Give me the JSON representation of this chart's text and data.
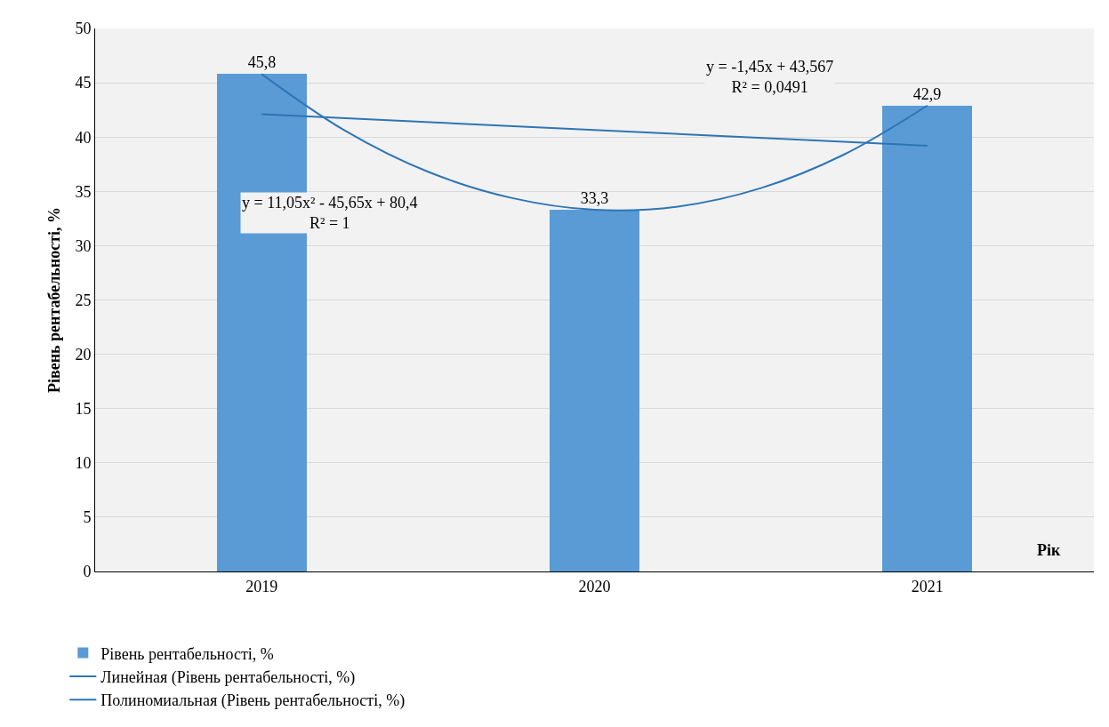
{
  "chart_data": {
    "type": "bar",
    "ylabel": "Рівень рентабельності, %",
    "xlabel": "Рік",
    "x": [
      2019,
      2020,
      2021
    ],
    "xlim": [
      2018.5,
      2021.5
    ],
    "xticks": [
      2019,
      2020,
      2021
    ],
    "ylim": [
      0,
      50
    ],
    "yticks": [
      0,
      5,
      10,
      15,
      20,
      25,
      30,
      35,
      40,
      45,
      50
    ],
    "grid": "y",
    "legend": "bottom",
    "series": [
      {
        "name": "Рівень рентабельності, %",
        "color": "#5b9bd5",
        "values": [
          45.8,
          33.3,
          42.9
        ],
        "value_labels": [
          "45,8",
          "33,3",
          "42,9"
        ]
      },
      {
        "name": "Линейная (Рівень рентабельності, %)",
        "type": "line",
        "color": "#2e75b6",
        "x": [
          2019,
          2021
        ],
        "values": [
          42.1,
          39.2
        ]
      },
      {
        "name": "Полиномиальная (Рівень рентабельності, %)",
        "type": "line",
        "color": "#2e75b6",
        "x": [
          2019,
          2019.25,
          2019.5,
          2019.75,
          2020,
          2020.25,
          2020.5,
          2020.75,
          2021
        ],
        "values": [
          45.8,
          40.6,
          36.8,
          34.4,
          33.3,
          33.6,
          35.3,
          38.4,
          42.9
        ]
      }
    ],
    "annotations": [
      "y = 11,05x² - 45,65x + 80,4\nR² = 1",
      "y = -1,45x + 43,567\nR² = 0,0491"
    ]
  }
}
